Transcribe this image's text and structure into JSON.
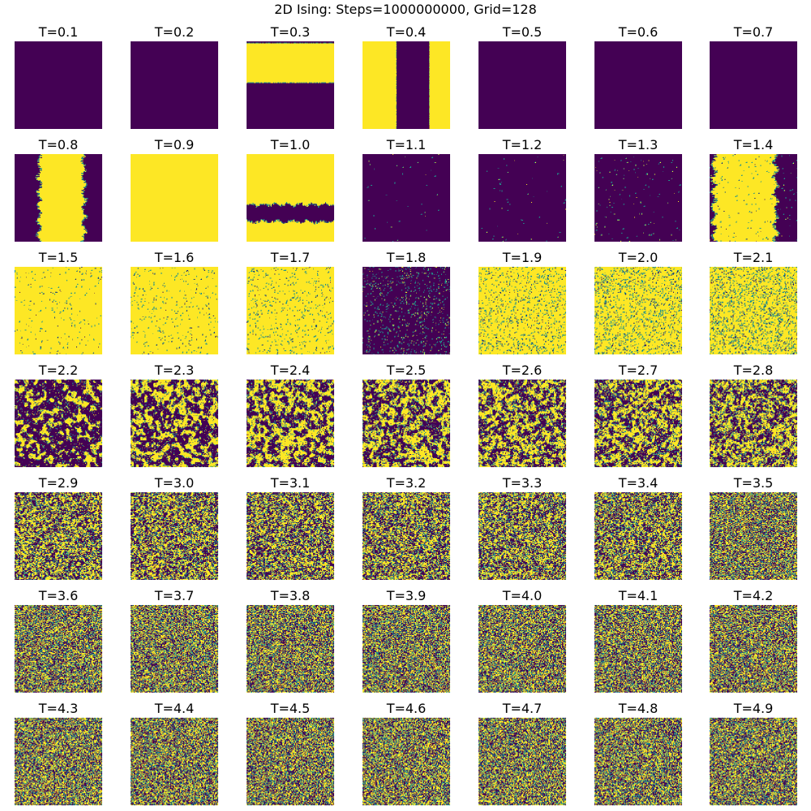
{
  "figure": {
    "title": "2D Ising: Steps=1000000000, Grid=128",
    "rows": 7,
    "cols": 7
  },
  "colors": {
    "spin_down": "#440154",
    "spin_up": "#fde725",
    "domain_edge": "#21918c"
  },
  "chart_data": {
    "type": "heatmap",
    "title": "2D Ising: Steps=1000000000, Grid=128",
    "grid_size": 128,
    "steps": 1000000000,
    "colormap": "viridis",
    "values_shown": "spin configuration (-1 / +1)",
    "axes_visible": false,
    "panels": [
      {
        "label": "T=0.1",
        "temperature": 0.1,
        "pattern": "uniform",
        "state": "down"
      },
      {
        "label": "T=0.2",
        "temperature": 0.2,
        "pattern": "uniform",
        "state": "down"
      },
      {
        "label": "T=0.3",
        "temperature": 0.3,
        "pattern": "horizontal_band",
        "band_state": "up",
        "band": [
          0.02,
          0.48
        ]
      },
      {
        "label": "T=0.4",
        "temperature": 0.4,
        "pattern": "vertical_stripes",
        "stripes": [
          [
            0.0,
            0.39,
            "up"
          ],
          [
            0.39,
            0.76,
            "down"
          ],
          [
            0.76,
            1.0,
            "up"
          ]
        ]
      },
      {
        "label": "T=0.5",
        "temperature": 0.5,
        "pattern": "uniform",
        "state": "down"
      },
      {
        "label": "T=0.6",
        "temperature": 0.6,
        "pattern": "uniform",
        "state": "down"
      },
      {
        "label": "T=0.7",
        "temperature": 0.7,
        "pattern": "uniform",
        "state": "down"
      },
      {
        "label": "T=0.8",
        "temperature": 0.8,
        "pattern": "vertical_band",
        "band_state": "up",
        "band": [
          0.28,
          0.8
        ],
        "rough": 0.04
      },
      {
        "label": "T=0.9",
        "temperature": 0.9,
        "pattern": "uniform",
        "state": "up"
      },
      {
        "label": "T=1.0",
        "temperature": 1.0,
        "pattern": "horizontal_band",
        "band_state": "down",
        "band": [
          0.58,
          0.77
        ],
        "background_state": "up",
        "rough": 0.03
      },
      {
        "label": "T=1.1",
        "temperature": 1.1,
        "pattern": "noisy",
        "state": "down",
        "flip_fraction": 0.002
      },
      {
        "label": "T=1.2",
        "temperature": 1.2,
        "pattern": "noisy",
        "state": "down",
        "flip_fraction": 0.004
      },
      {
        "label": "T=1.3",
        "temperature": 1.3,
        "pattern": "noisy",
        "state": "down",
        "flip_fraction": 0.008
      },
      {
        "label": "T=1.4",
        "temperature": 1.4,
        "pattern": "vertical_band",
        "band_state": "up",
        "band": [
          0.05,
          0.76
        ],
        "rough": 0.05,
        "flip_fraction": 0.01
      },
      {
        "label": "T=1.5",
        "temperature": 1.5,
        "pattern": "noisy",
        "state": "up",
        "flip_fraction": 0.012
      },
      {
        "label": "T=1.6",
        "temperature": 1.6,
        "pattern": "noisy",
        "state": "up",
        "flip_fraction": 0.02
      },
      {
        "label": "T=1.7",
        "temperature": 1.7,
        "pattern": "noisy",
        "state": "up",
        "flip_fraction": 0.03
      },
      {
        "label": "T=1.8",
        "temperature": 1.8,
        "pattern": "noisy",
        "state": "down",
        "flip_fraction": 0.045
      },
      {
        "label": "T=1.9",
        "temperature": 1.9,
        "pattern": "noisy",
        "state": "up",
        "flip_fraction": 0.06
      },
      {
        "label": "T=2.0",
        "temperature": 2.0,
        "pattern": "noisy",
        "state": "up",
        "flip_fraction": 0.08
      },
      {
        "label": "T=2.1",
        "temperature": 2.1,
        "pattern": "noisy",
        "state": "up",
        "flip_fraction": 0.1
      },
      {
        "label": "T=2.2",
        "temperature": 2.2,
        "pattern": "clusters",
        "up_fraction": 0.3
      },
      {
        "label": "T=2.3",
        "temperature": 2.3,
        "pattern": "clusters",
        "up_fraction": 0.45
      },
      {
        "label": "T=2.4",
        "temperature": 2.4,
        "pattern": "clusters",
        "up_fraction": 0.5
      },
      {
        "label": "T=2.5",
        "temperature": 2.5,
        "pattern": "clusters",
        "up_fraction": 0.5
      },
      {
        "label": "T=2.6",
        "temperature": 2.6,
        "pattern": "clusters",
        "up_fraction": 0.5
      },
      {
        "label": "T=2.7",
        "temperature": 2.7,
        "pattern": "clusters",
        "up_fraction": 0.5
      },
      {
        "label": "T=2.8",
        "temperature": 2.8,
        "pattern": "clusters",
        "up_fraction": 0.5
      },
      {
        "label": "T=2.9",
        "temperature": 2.9,
        "pattern": "disordered",
        "up_fraction": 0.5
      },
      {
        "label": "T=3.0",
        "temperature": 3.0,
        "pattern": "disordered",
        "up_fraction": 0.5
      },
      {
        "label": "T=3.1",
        "temperature": 3.1,
        "pattern": "disordered",
        "up_fraction": 0.5
      },
      {
        "label": "T=3.2",
        "temperature": 3.2,
        "pattern": "disordered",
        "up_fraction": 0.5
      },
      {
        "label": "T=3.3",
        "temperature": 3.3,
        "pattern": "disordered",
        "up_fraction": 0.5
      },
      {
        "label": "T=3.4",
        "temperature": 3.4,
        "pattern": "disordered",
        "up_fraction": 0.5
      },
      {
        "label": "T=3.5",
        "temperature": 3.5,
        "pattern": "disordered",
        "up_fraction": 0.5
      },
      {
        "label": "T=3.6",
        "temperature": 3.6,
        "pattern": "disordered",
        "up_fraction": 0.5
      },
      {
        "label": "T=3.7",
        "temperature": 3.7,
        "pattern": "disordered",
        "up_fraction": 0.5
      },
      {
        "label": "T=3.8",
        "temperature": 3.8,
        "pattern": "disordered",
        "up_fraction": 0.5
      },
      {
        "label": "T=3.9",
        "temperature": 3.9,
        "pattern": "disordered",
        "up_fraction": 0.5
      },
      {
        "label": "T=4.0",
        "temperature": 4.0,
        "pattern": "disordered",
        "up_fraction": 0.5
      },
      {
        "label": "T=4.1",
        "temperature": 4.1,
        "pattern": "disordered",
        "up_fraction": 0.5
      },
      {
        "label": "T=4.2",
        "temperature": 4.2,
        "pattern": "disordered",
        "up_fraction": 0.5
      },
      {
        "label": "T=4.3",
        "temperature": 4.3,
        "pattern": "disordered",
        "up_fraction": 0.5
      },
      {
        "label": "T=4.4",
        "temperature": 4.4,
        "pattern": "disordered",
        "up_fraction": 0.5
      },
      {
        "label": "T=4.5",
        "temperature": 4.5,
        "pattern": "disordered",
        "up_fraction": 0.5
      },
      {
        "label": "T=4.6",
        "temperature": 4.6,
        "pattern": "disordered",
        "up_fraction": 0.5
      },
      {
        "label": "T=4.7",
        "temperature": 4.7,
        "pattern": "disordered",
        "up_fraction": 0.5
      },
      {
        "label": "T=4.8",
        "temperature": 4.8,
        "pattern": "disordered",
        "up_fraction": 0.5
      },
      {
        "label": "T=4.9",
        "temperature": 4.9,
        "pattern": "disordered",
        "up_fraction": 0.5
      }
    ]
  }
}
